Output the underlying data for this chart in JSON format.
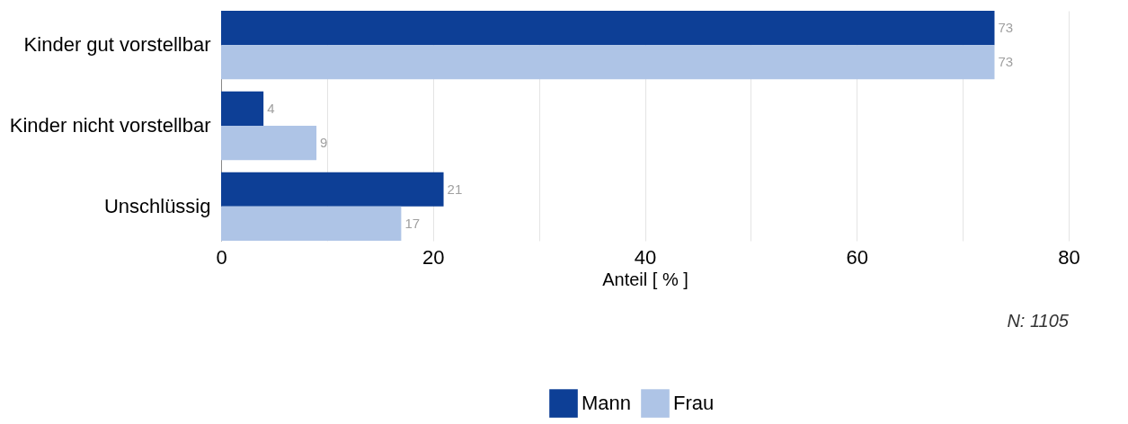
{
  "chart_data": {
    "type": "bar",
    "orientation": "horizontal",
    "categories": [
      "Kinder gut vorstellbar",
      "Kinder nicht vorstellbar",
      "Unschlüssig"
    ],
    "series": [
      {
        "name": "Mann",
        "color": "#0d3f96",
        "values": [
          73,
          4,
          21
        ]
      },
      {
        "name": "Frau",
        "color": "#aec4e6",
        "values": [
          73,
          9,
          17
        ]
      }
    ],
    "xlabel": "Anteil [ % ]",
    "xlim": [
      0,
      80
    ],
    "xticks": [
      0,
      {
        "value": 10,
        "label": null
      },
      20,
      {
        "value": 30,
        "label": null
      },
      40,
      {
        "value": 50,
        "label": null
      },
      60,
      {
        "value": 70,
        "label": null
      },
      80
    ],
    "grid": "x",
    "data_labels": true,
    "legend": "bottom",
    "annotations": [
      "N: 1105"
    ]
  }
}
